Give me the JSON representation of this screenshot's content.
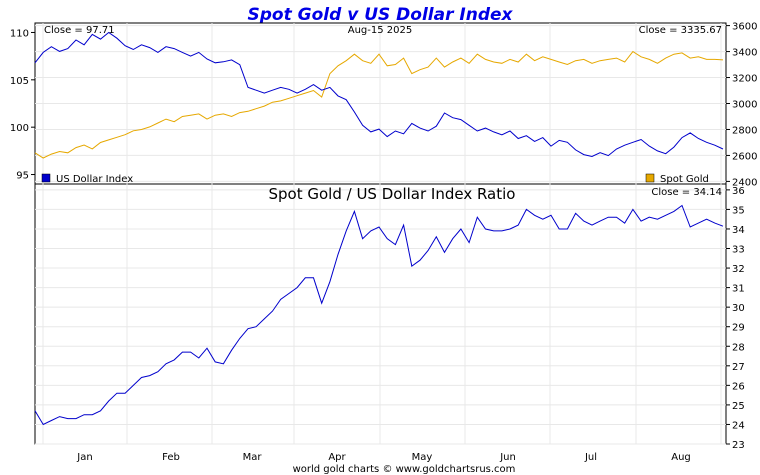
{
  "title": "Spot Gold v US Dollar Index",
  "date_label": "Aug-15  2025",
  "footer": "world gold charts © www.goldchartsrus.com",
  "colors": {
    "usd": "#0000cc",
    "gold": "#e6a800",
    "title": "#0000e6"
  },
  "chart_data": [
    {
      "type": "line",
      "panel": "top",
      "x_labels": [
        "Jan",
        "Feb",
        "Mar",
        "Apr",
        "May",
        "Jun",
        "Jul",
        "Aug"
      ],
      "left_close_label": "Close = 97.71",
      "right_close_label": "Close = 3335.67",
      "left_axis": {
        "ticks": [
          95,
          100,
          105,
          110
        ],
        "range": [
          94,
          111
        ]
      },
      "right_axis": {
        "ticks": [
          2400,
          2600,
          2800,
          3000,
          3200,
          3400,
          3600
        ],
        "range": [
          2380,
          3620
        ]
      },
      "legend": [
        {
          "name": "US Dollar Index",
          "color": "#0000cc",
          "position": "bottom-left"
        },
        {
          "name": "Spot Gold",
          "color": "#e6a800",
          "position": "bottom-right"
        }
      ],
      "series": [
        {
          "name": "US Dollar Index",
          "axis": "left",
          "values": [
            106.8,
            107.9,
            108.5,
            108.0,
            108.3,
            109.2,
            108.7,
            109.8,
            109.3,
            110.0,
            109.4,
            108.6,
            108.2,
            108.7,
            108.4,
            107.9,
            108.5,
            108.3,
            107.9,
            107.5,
            107.9,
            107.2,
            106.8,
            106.9,
            107.1,
            106.6,
            104.2,
            103.9,
            103.6,
            103.9,
            104.2,
            104.0,
            103.6,
            104.0,
            104.5,
            103.9,
            104.2,
            103.3,
            102.9,
            101.6,
            100.2,
            99.5,
            99.8,
            99.0,
            99.6,
            99.3,
            100.4,
            99.9,
            99.6,
            100.1,
            101.5,
            101.0,
            100.8,
            100.2,
            99.6,
            99.9,
            99.5,
            99.2,
            99.6,
            98.8,
            99.1,
            98.5,
            98.9,
            98.0,
            98.6,
            98.4,
            97.6,
            97.1,
            96.9,
            97.3,
            97.0,
            97.7,
            98.1,
            98.4,
            98.7,
            98.0,
            97.5,
            97.2,
            97.9,
            98.9,
            99.4,
            98.8,
            98.4,
            98.1,
            97.7
          ]
        },
        {
          "name": "Spot Gold",
          "axis": "left_scaled_to_right",
          "values": [
            2620,
            2580,
            2610,
            2630,
            2620,
            2660,
            2680,
            2650,
            2700,
            2720,
            2740,
            2760,
            2790,
            2800,
            2820,
            2850,
            2880,
            2860,
            2900,
            2910,
            2920,
            2880,
            2910,
            2920,
            2900,
            2930,
            2940,
            2960,
            2980,
            3010,
            3020,
            3040,
            3060,
            3080,
            3100,
            3050,
            3230,
            3290,
            3330,
            3380,
            3330,
            3310,
            3380,
            3290,
            3300,
            3350,
            3230,
            3260,
            3280,
            3350,
            3280,
            3320,
            3350,
            3310,
            3380,
            3340,
            3320,
            3310,
            3340,
            3320,
            3380,
            3330,
            3360,
            3340,
            3320,
            3300,
            3330,
            3340,
            3310,
            3330,
            3340,
            3350,
            3320,
            3400,
            3360,
            3340,
            3310,
            3350,
            3380,
            3390,
            3350,
            3360,
            3340,
            3340,
            3336
          ]
        }
      ]
    },
    {
      "type": "line",
      "panel": "bottom",
      "title": "Spot Gold  /  US Dollar Index Ratio",
      "close_label": "Close = 34.14",
      "right_axis": {
        "ticks": [
          23,
          24,
          25,
          26,
          27,
          28,
          29,
          30,
          31,
          32,
          33,
          34,
          35,
          36
        ],
        "range": [
          23,
          36.3
        ]
      },
      "x_labels": [
        "Jan",
        "Feb",
        "Mar",
        "Apr",
        "May",
        "Jun",
        "Jul",
        "Aug"
      ],
      "series": [
        {
          "name": "Spot Gold / US Dollar Index Ratio",
          "values": [
            24.7,
            24.0,
            24.2,
            24.4,
            24.3,
            24.3,
            24.5,
            24.5,
            24.7,
            25.2,
            25.6,
            25.6,
            26.0,
            26.4,
            26.5,
            26.7,
            27.1,
            27.3,
            27.7,
            27.7,
            27.4,
            27.9,
            27.2,
            27.1,
            27.8,
            28.4,
            28.9,
            29.0,
            29.4,
            29.8,
            30.4,
            30.7,
            31.0,
            31.5,
            31.5,
            30.2,
            31.3,
            32.7,
            33.9,
            34.9,
            33.5,
            33.9,
            34.1,
            33.5,
            33.2,
            34.2,
            32.1,
            32.4,
            32.9,
            33.6,
            32.8,
            33.5,
            34.0,
            33.3,
            34.6,
            34.0,
            33.9,
            33.9,
            34.0,
            34.2,
            35.0,
            34.7,
            34.5,
            34.7,
            34.0,
            34.0,
            34.8,
            34.4,
            34.2,
            34.4,
            34.6,
            34.6,
            34.3,
            35.0,
            34.4,
            34.6,
            34.5,
            34.7,
            34.9,
            35.2,
            34.1,
            34.3,
            34.5,
            34.3,
            34.14
          ]
        }
      ]
    }
  ]
}
